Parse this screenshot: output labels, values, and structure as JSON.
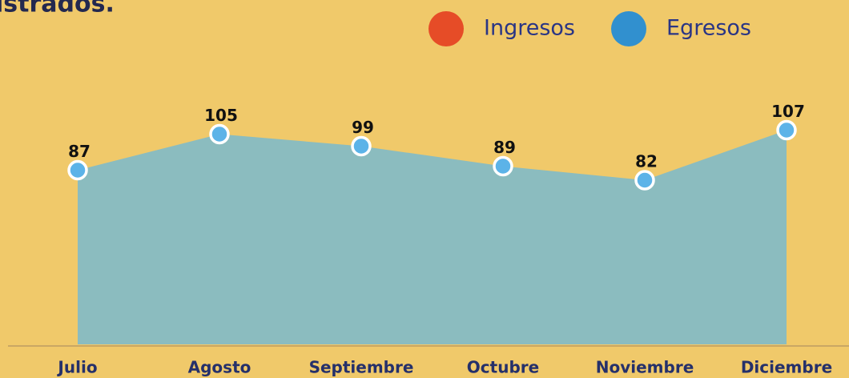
{
  "title": "istrados.",
  "chart_data": {
    "type": "area",
    "legend": [
      {
        "name": "Ingresos",
        "color": "#e64c27"
      },
      {
        "name": "Egresos",
        "color": "#3190cf"
      }
    ],
    "categories": [
      "Julio",
      "Agosto",
      "Septiembre",
      "Octubre",
      "Noviembre",
      "Diciembre"
    ],
    "series": [
      {
        "values": [
          87,
          105,
          99,
          89,
          82,
          107
        ],
        "color": "#5cb3e8",
        "fill": "#8bbcbf"
      }
    ],
    "ylim": [
      0,
      120
    ]
  }
}
